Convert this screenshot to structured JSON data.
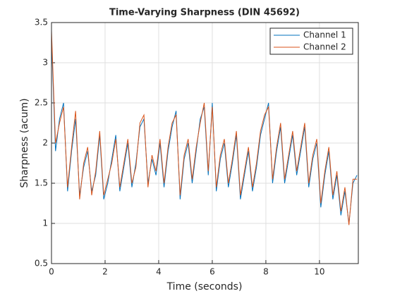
{
  "chart_data": {
    "type": "line",
    "title": "Time-Varying Sharpness (DIN 45692)",
    "xlabel": "Time (seconds)",
    "ylabel": "Sharpness (acum)",
    "x": [
      0,
      0.15,
      0.3,
      0.45,
      0.6,
      0.75,
      0.9,
      1.05,
      1.2,
      1.35,
      1.5,
      1.65,
      1.8,
      1.95,
      2.1,
      2.25,
      2.4,
      2.55,
      2.7,
      2.85,
      3.0,
      3.15,
      3.3,
      3.45,
      3.6,
      3.75,
      3.9,
      4.05,
      4.2,
      4.35,
      4.5,
      4.65,
      4.8,
      4.95,
      5.1,
      5.25,
      5.4,
      5.55,
      5.7,
      5.85,
      6.0,
      6.15,
      6.3,
      6.45,
      6.6,
      6.75,
      6.9,
      7.05,
      7.2,
      7.35,
      7.5,
      7.65,
      7.8,
      7.95,
      8.1,
      8.25,
      8.4,
      8.55,
      8.7,
      8.85,
      9.0,
      9.15,
      9.3,
      9.45,
      9.6,
      9.75,
      9.9,
      10.05,
      10.2,
      10.35,
      10.5,
      10.65,
      10.8,
      10.95,
      11.1,
      11.25,
      11.4
    ],
    "series": [
      {
        "name": "Channel 1",
        "color": "#0072bd",
        "values": [
          3.3,
          1.9,
          2.3,
          2.5,
          1.4,
          1.9,
          2.3,
          1.35,
          1.7,
          1.9,
          1.4,
          1.6,
          2.1,
          1.3,
          1.5,
          1.8,
          2.1,
          1.4,
          1.7,
          2.0,
          1.45,
          1.75,
          2.2,
          2.3,
          1.5,
          1.8,
          1.6,
          2.0,
          1.45,
          1.9,
          2.2,
          2.4,
          1.3,
          1.8,
          2.0,
          1.5,
          1.9,
          2.3,
          2.45,
          1.6,
          2.5,
          1.4,
          1.8,
          2.0,
          1.45,
          1.75,
          2.1,
          1.3,
          1.6,
          1.9,
          1.4,
          1.7,
          2.1,
          2.3,
          2.5,
          1.5,
          1.9,
          2.2,
          1.5,
          1.8,
          2.1,
          1.6,
          1.9,
          2.2,
          1.45,
          1.8,
          2.0,
          1.2,
          1.6,
          1.9,
          1.3,
          1.6,
          1.1,
          1.4,
          1.0,
          1.5,
          1.6
        ]
      },
      {
        "name": "Channel 2",
        "color": "#d95319",
        "values": [
          3.4,
          2.0,
          2.25,
          2.45,
          1.45,
          1.95,
          2.4,
          1.3,
          1.75,
          1.95,
          1.35,
          1.65,
          2.15,
          1.35,
          1.55,
          1.75,
          2.05,
          1.45,
          1.75,
          2.05,
          1.5,
          1.7,
          2.25,
          2.35,
          1.45,
          1.85,
          1.65,
          2.05,
          1.5,
          1.95,
          2.25,
          2.35,
          1.35,
          1.85,
          2.05,
          1.55,
          1.95,
          2.25,
          2.5,
          1.65,
          2.45,
          1.45,
          1.85,
          2.05,
          1.5,
          1.8,
          2.15,
          1.35,
          1.65,
          1.95,
          1.45,
          1.75,
          2.15,
          2.35,
          2.45,
          1.55,
          1.95,
          2.25,
          1.55,
          1.85,
          2.15,
          1.65,
          1.95,
          2.25,
          1.5,
          1.85,
          2.05,
          1.25,
          1.65,
          1.95,
          1.35,
          1.65,
          1.15,
          1.45,
          0.98,
          1.55,
          1.55
        ]
      }
    ],
    "xlim": [
      0,
      11.45
    ],
    "xticks": [
      0,
      2,
      4,
      6,
      8,
      10
    ],
    "ylim": [
      0.5,
      3.5
    ],
    "yticks": [
      0.5,
      1,
      1.5,
      2,
      2.5,
      3,
      3.5
    ],
    "grid": true,
    "legend": "northeast"
  }
}
